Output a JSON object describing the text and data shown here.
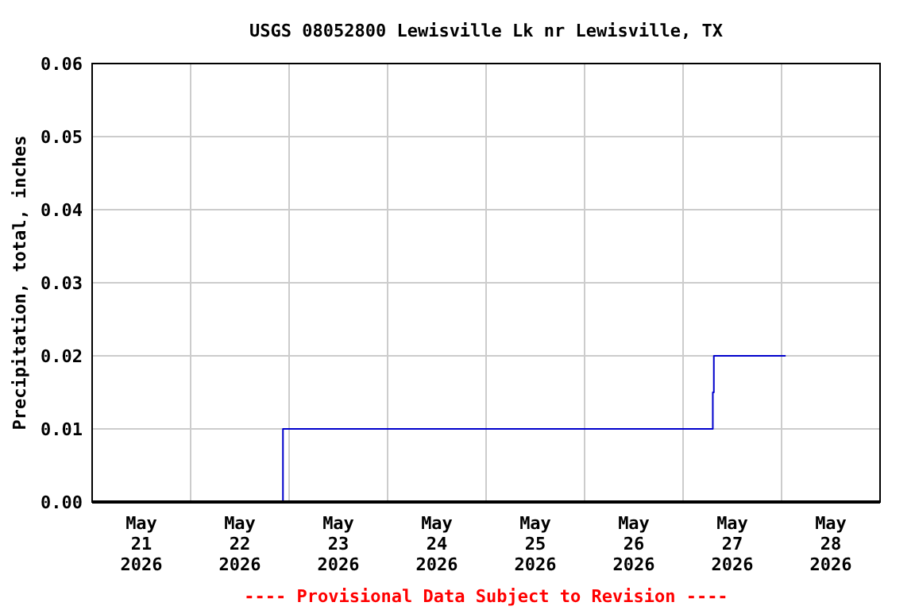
{
  "chart_data": {
    "type": "step",
    "title": "USGS 08052800 Lewisville Lk nr Lewisville, TX",
    "ylabel": "Precipitation, total, inches",
    "x": [
      "2026-05-21T01:00",
      "2026-05-22T22:30",
      "2026-05-27T07:15",
      "2026-05-27T07:30",
      "2026-05-28T01:00"
    ],
    "series": [
      {
        "color": "#0000cc",
        "values": [
          0,
          0.01,
          0.015,
          0.02,
          0.02
        ]
      }
    ],
    "xlim": [
      "2026-05-21T00:00",
      "2026-05-29T00:00"
    ],
    "xticks": [
      {
        "value": "2026-05-21T12:00",
        "label": "May 21 2026"
      },
      {
        "value": "2026-05-22T12:00",
        "label": "May 22 2026"
      },
      {
        "value": "2026-05-23T12:00",
        "label": "May 23 2026"
      },
      {
        "value": "2026-05-24T12:00",
        "label": "May 24 2026"
      },
      {
        "value": "2026-05-25T12:00",
        "label": "May 25 2026"
      },
      {
        "value": "2026-05-26T12:00",
        "label": "May 26 2026"
      },
      {
        "value": "2026-05-27T12:00",
        "label": "May 27 2026"
      },
      {
        "value": "2026-05-28T12:00",
        "label": "May 28 2026"
      },
      {
        "value": "2026-05-22T00:00",
        "label": null
      },
      {
        "value": "2026-05-23T00:00",
        "label": null
      },
      {
        "value": "2026-05-24T00:00",
        "label": null
      },
      {
        "value": "2026-05-25T00:00",
        "label": null
      },
      {
        "value": "2026-05-26T00:00",
        "label": null
      },
      {
        "value": "2026-05-27T00:00",
        "label": null
      },
      {
        "value": "2026-05-28T00:00",
        "label": null
      }
    ],
    "ylim": [
      0,
      0.06
    ],
    "yticks": [
      {
        "value": 0,
        "label": "0.00"
      },
      {
        "value": 0.01,
        "label": "0.01"
      },
      {
        "value": 0.02,
        "label": "0.02"
      },
      {
        "value": 0.03,
        "label": "0.03"
      },
      {
        "value": 0.04,
        "label": "0.04"
      },
      {
        "value": 0.05,
        "label": "0.05"
      },
      {
        "value": 0.06,
        "label": "0.06"
      }
    ],
    "grid": true,
    "line_style": "solid",
    "marker": "none",
    "annotations": [
      "---- Provisional Data Subject to Revision ----"
    ]
  }
}
